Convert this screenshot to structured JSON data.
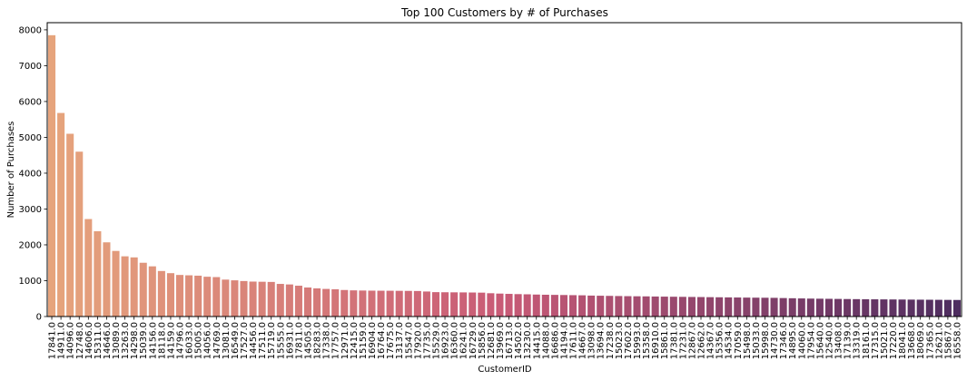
{
  "chart_data": {
    "type": "bar",
    "title": "Top 100 Customers by # of Purchases",
    "xlabel": "CustomerID",
    "ylabel": "Number of Purchases",
    "ylim": [
      0,
      8200
    ],
    "yticks": [
      0,
      1000,
      2000,
      3000,
      4000,
      5000,
      6000,
      7000,
      8000
    ],
    "ytick_labels": [
      "0",
      "1000",
      "2000",
      "3000",
      "4000",
      "5000",
      "6000",
      "7000",
      "8000"
    ],
    "grid": false,
    "legend": "none",
    "palette": "flare",
    "color_start": "#e6a47c",
    "color_mid": "#c85a76",
    "color_end": "#4e2d60",
    "categories": [
      "17841.0",
      "14911.0",
      "14096.0",
      "12748.0",
      "14606.0",
      "15311.0",
      "14646.0",
      "13089.0",
      "13263.0",
      "14298.0",
      "15039.0",
      "14156.0",
      "18118.0",
      "14159.0",
      "14796.0",
      "16033.0",
      "15005.0",
      "14056.0",
      "14769.0",
      "13081.0",
      "16549.0",
      "17527.0",
      "14456.0",
      "17511.0",
      "15719.0",
      "15555.0",
      "16931.0",
      "17811.0",
      "14505.0",
      "18283.0",
      "17338.0",
      "17757.0",
      "12971.0",
      "12415.0",
      "15159.0",
      "16904.0",
      "16764.0",
      "17675.0",
      "13137.0",
      "15547.0",
      "17920.0",
      "17735.0",
      "15529.0",
      "16923.0",
      "16360.0",
      "16241.0",
      "16729.0",
      "15856.0",
      "12681.0",
      "13969.0",
      "16713.0",
      "14502.0",
      "13230.0",
      "14415.0",
      "14088.0",
      "16686.0",
      "14194.0",
      "17611.0",
      "14667.0",
      "13098.0",
      "13694.0",
      "17238.0",
      "15023.0",
      "17602.0",
      "15993.0",
      "15358.0",
      "16910.0",
      "15861.0",
      "17381.0",
      "17231.0",
      "12867.0",
      "12662.0",
      "14367.0",
      "15356.0",
      "14534.0",
      "17059.0",
      "15498.0",
      "15033.0",
      "15998.0",
      "14730.0",
      "17346.0",
      "14895.0",
      "14060.0",
      "17954.0",
      "15640.0",
      "12540.0",
      "13408.0",
      "17139.0",
      "13319.0",
      "18161.0",
      "17315.0",
      "15021.0",
      "17220.0",
      "18041.0",
      "13668.0",
      "18069.0",
      "17365.0",
      "12621.0",
      "15867.0",
      "16558.0"
    ],
    "values": [
      7850,
      5680,
      5100,
      4600,
      2720,
      2380,
      2070,
      1830,
      1680,
      1650,
      1500,
      1400,
      1270,
      1210,
      1160,
      1150,
      1140,
      1110,
      1100,
      1030,
      1010,
      990,
      975,
      970,
      965,
      910,
      895,
      860,
      810,
      785,
      770,
      760,
      740,
      730,
      725,
      722,
      720,
      719,
      717,
      715,
      712,
      698,
      680,
      677,
      675,
      673,
      670,
      666,
      650,
      640,
      632,
      625,
      620,
      613,
      608,
      604,
      600,
      596,
      592,
      584,
      580,
      576,
      572,
      568,
      565,
      562,
      558,
      555,
      552,
      549,
      546,
      543,
      540,
      537,
      534,
      531,
      528,
      526,
      524,
      521,
      515,
      510,
      505,
      500,
      497,
      494,
      491,
      488,
      485,
      482,
      480,
      478,
      476,
      474,
      472,
      470,
      468,
      466,
      464,
      462
    ]
  }
}
